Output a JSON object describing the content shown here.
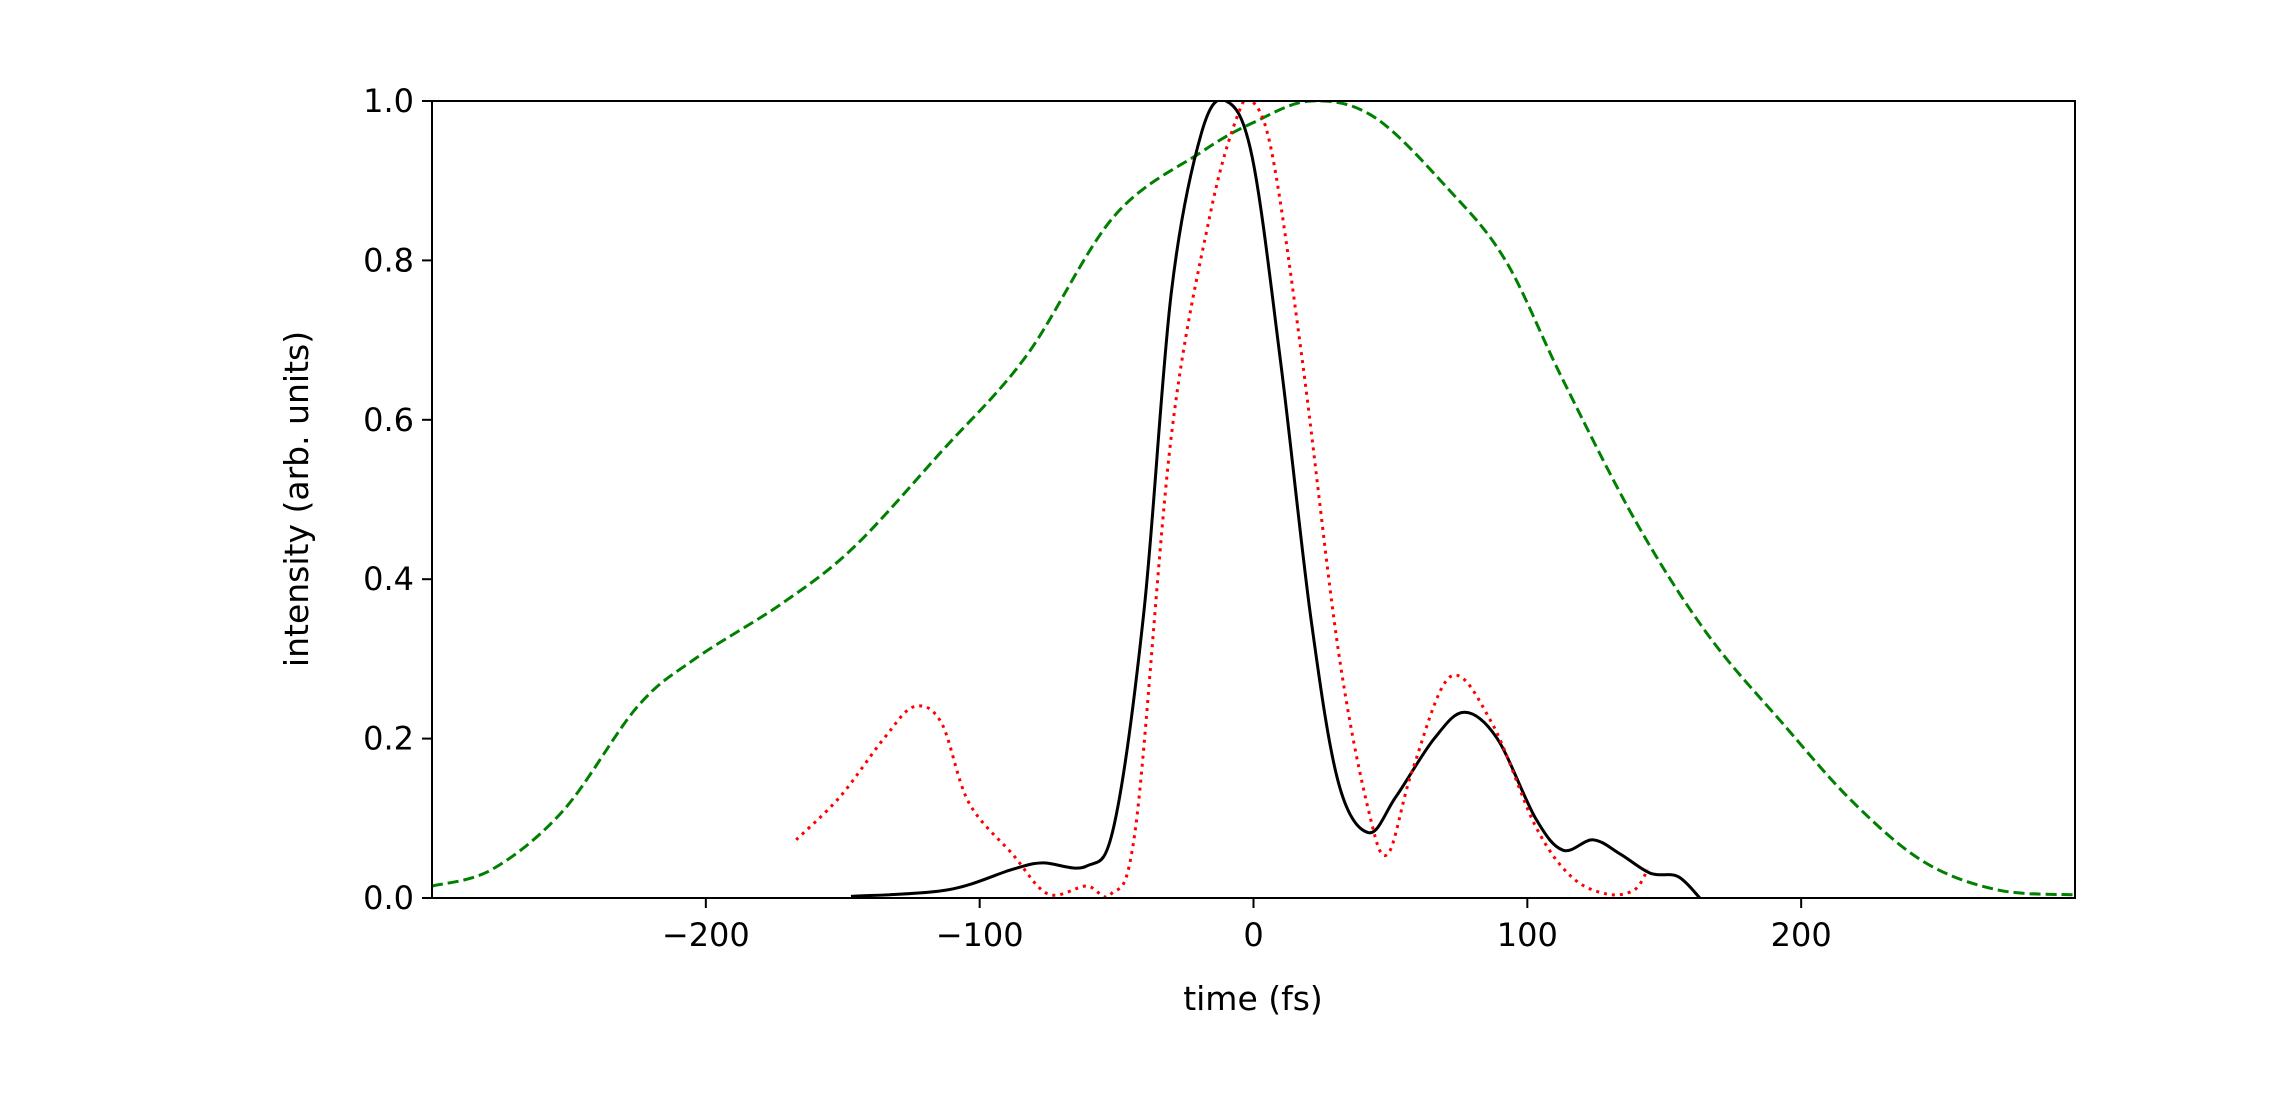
{
  "chart_data": {
    "type": "line",
    "title": "",
    "xlabel": "time (fs)",
    "ylabel": "intensity (arb. units)",
    "xlim": [
      -300,
      300
    ],
    "ylim": [
      0,
      1.0
    ],
    "xticks": [
      -200,
      -100,
      0,
      100,
      200
    ],
    "xtick_labels": [
      "−200",
      "−100",
      "0",
      "100",
      "200"
    ],
    "yticks": [
      0.0,
      0.2,
      0.4,
      0.6,
      0.8,
      1.0
    ],
    "ytick_labels": [
      "0.0",
      "0.2",
      "0.4",
      "0.6",
      "0.8",
      "1.0"
    ],
    "grid": false,
    "legend": "none",
    "series": [
      {
        "color": "#008000",
        "style": "dashed",
        "x": [
          -300,
          -278,
          -252,
          -225,
          -204,
          -172,
          -146,
          -114,
          -83,
          -51,
          -19,
          0,
          21,
          44,
          71,
          92,
          113,
          140,
          166,
          193,
          219,
          245,
          272,
          300
        ],
        "y": [
          0.015,
          0.036,
          0.11,
          0.24,
          0.3,
          0.37,
          0.44,
          0.56,
          0.68,
          0.855,
          0.936,
          0.973,
          1.0,
          0.98,
          0.89,
          0.8,
          0.65,
          0.47,
          0.33,
          0.22,
          0.12,
          0.045,
          0.01,
          0.004
        ]
      },
      {
        "color": "#000000",
        "style": "solid",
        "x": [
          -147,
          -112,
          -88,
          -77,
          -61,
          -51,
          -40,
          -30,
          -19,
          -10,
          -0.5,
          10,
          21,
          31,
          42,
          52,
          66,
          77,
          89,
          103,
          113,
          124,
          134,
          145,
          155,
          163
        ],
        "y": [
          0.002,
          0.01,
          0.036,
          0.044,
          0.04,
          0.09,
          0.36,
          0.76,
          0.96,
          1.0,
          0.93,
          0.67,
          0.35,
          0.145,
          0.082,
          0.127,
          0.2,
          0.233,
          0.2,
          0.1,
          0.06,
          0.073,
          0.055,
          0.031,
          0.027,
          0.0
        ]
      },
      {
        "color": "#ff0000",
        "style": "dotted",
        "x": [
          -167,
          -151,
          -135,
          -124,
          -114,
          -104,
          -88,
          -75,
          -61,
          -52,
          -43,
          -30,
          -16,
          -6,
          -0.5,
          7,
          18,
          31,
          42,
          49,
          58,
          72,
          87,
          103,
          116,
          129,
          139,
          144
        ],
        "y": [
          0.073,
          0.127,
          0.2,
          0.24,
          0.22,
          0.12,
          0.055,
          0.005,
          0.015,
          0.005,
          0.09,
          0.58,
          0.855,
          0.98,
          1.0,
          0.93,
          0.67,
          0.31,
          0.11,
          0.055,
          0.16,
          0.278,
          0.22,
          0.09,
          0.027,
          0.005,
          0.01,
          0.036
        ]
      }
    ]
  }
}
